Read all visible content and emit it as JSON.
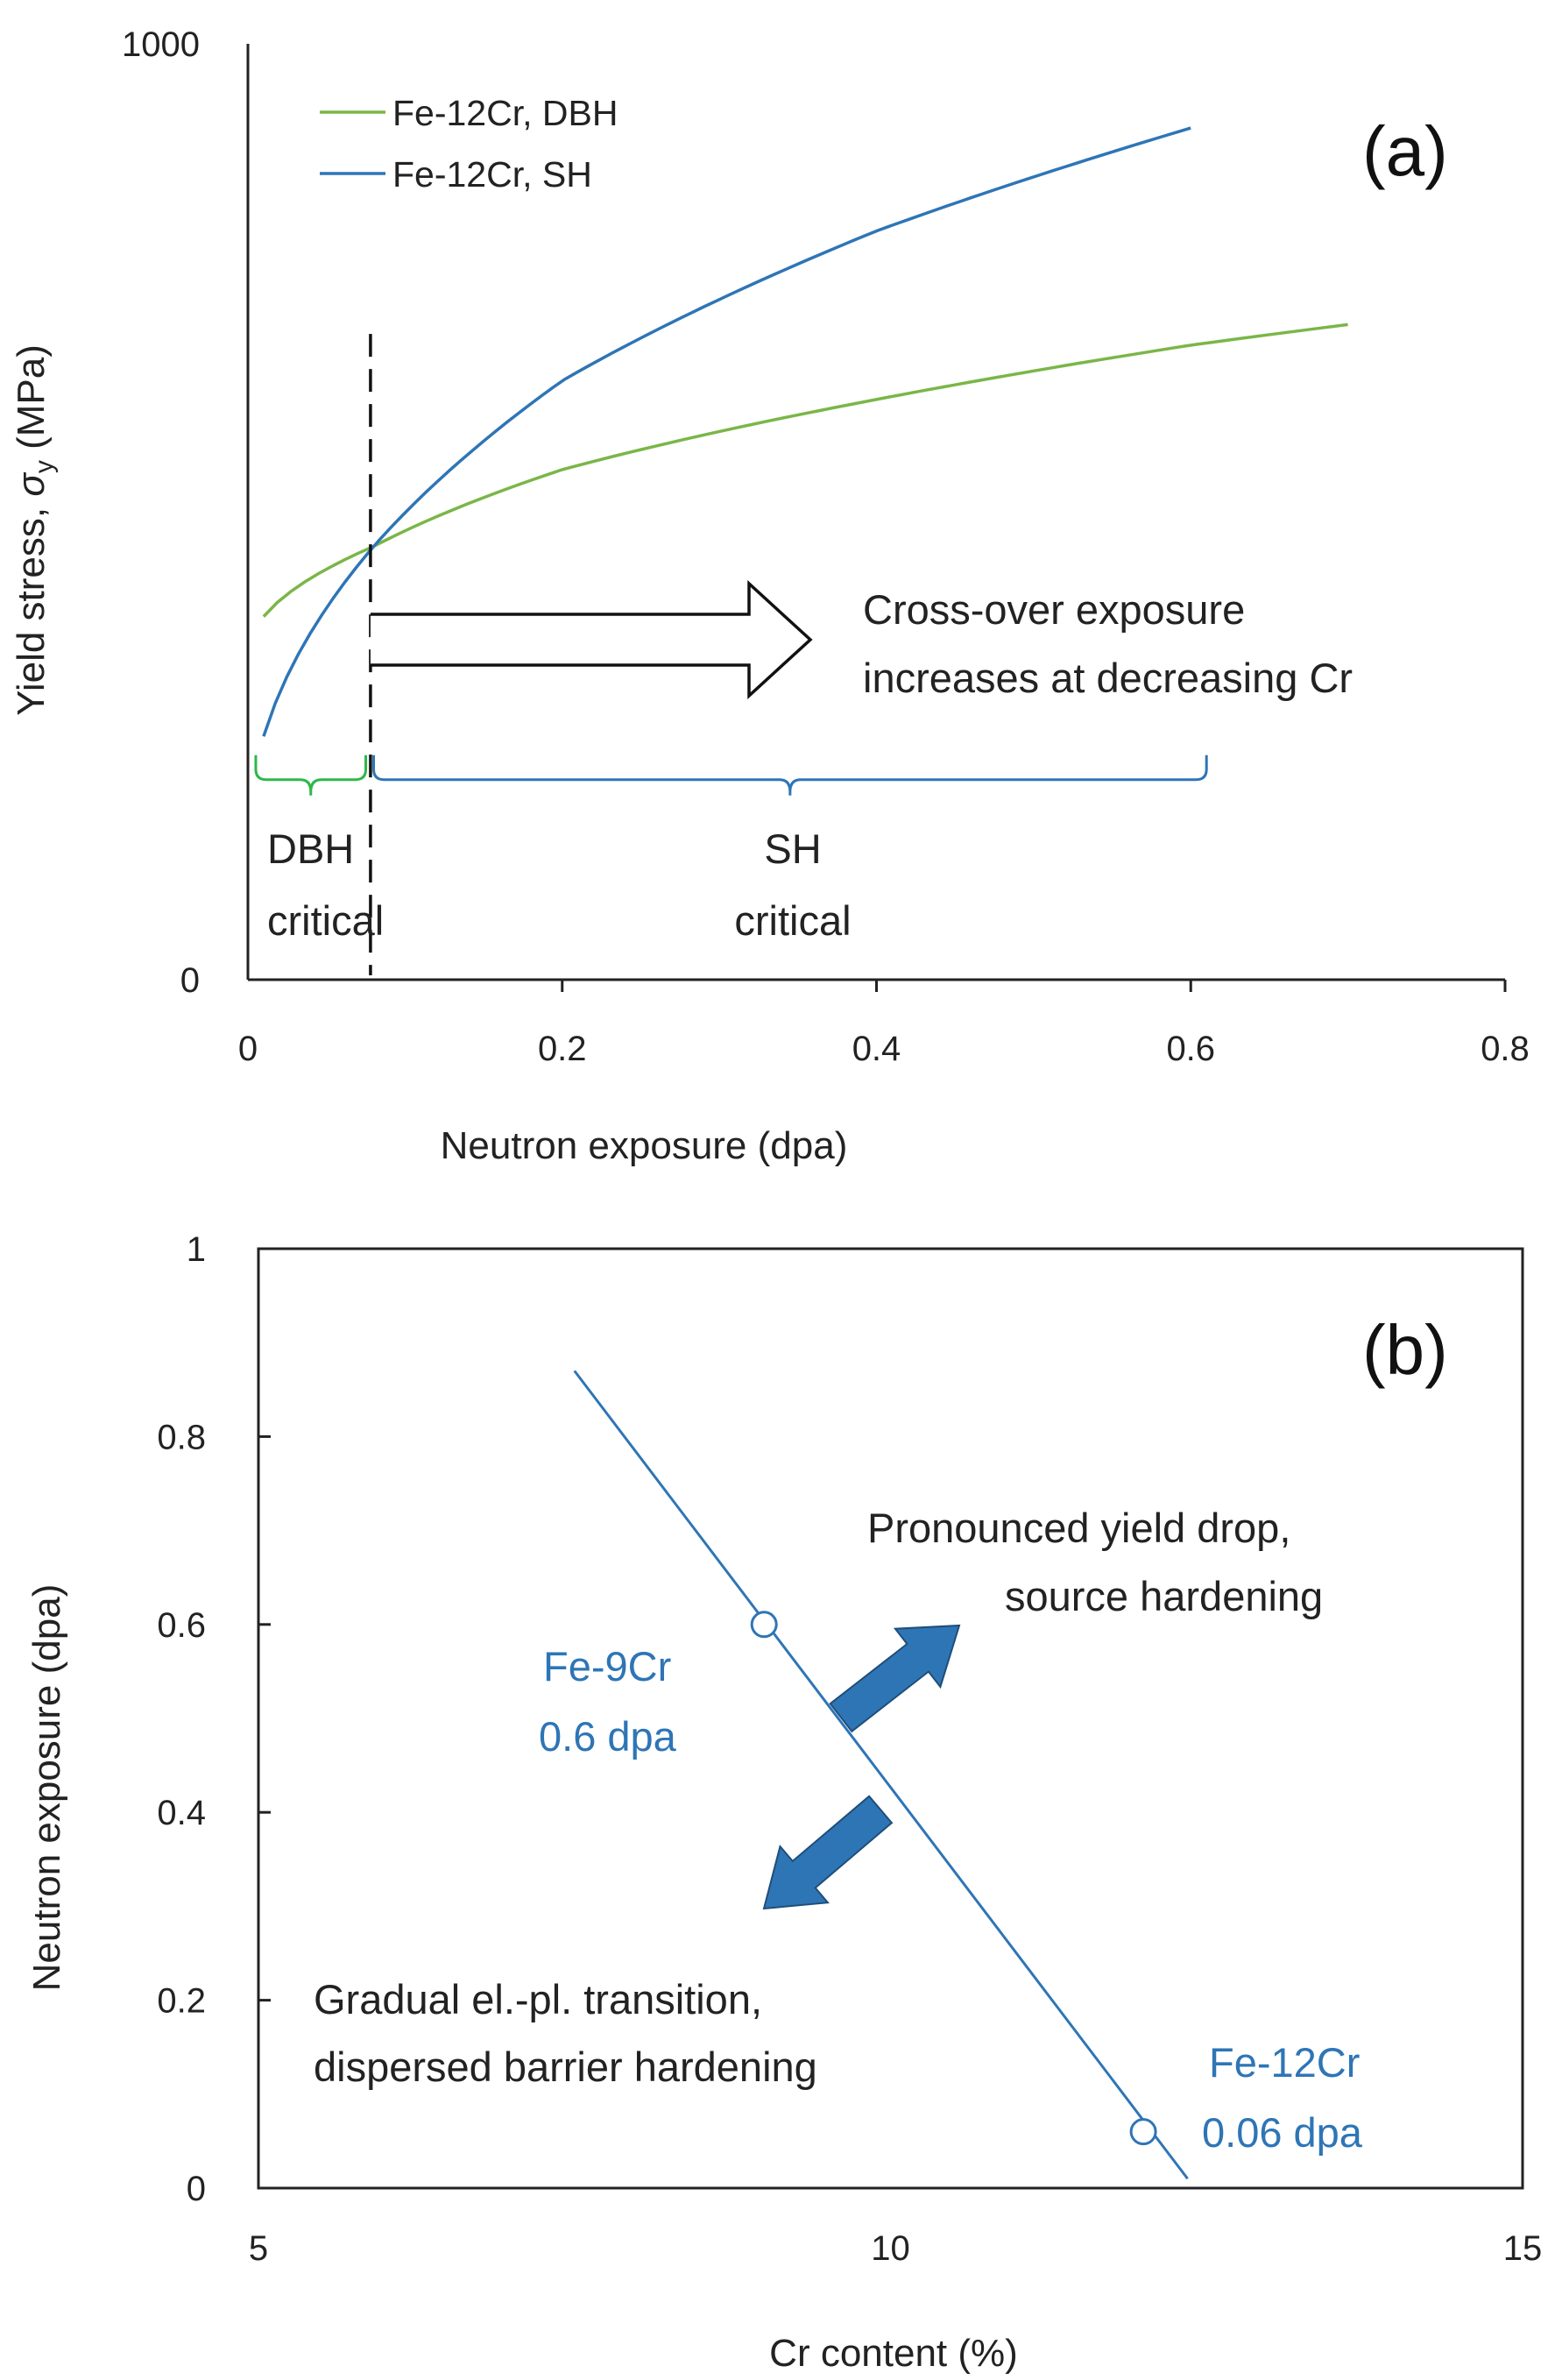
{
  "colors": {
    "green": "#7ab648",
    "blue": "#2e75b6",
    "bracket_green": "#2db84a",
    "arrow_blue": "#2e75b6",
    "axis": "#222222"
  },
  "chart_data": [
    {
      "type": "line",
      "panel_label": "(a)",
      "title": "",
      "xlabel": "Neutron exposure  (dpa)",
      "ylabel_prefix": "Yield  stress, ",
      "ylabel_symbol": "σ",
      "ylabel_sub": "y",
      "ylabel_unit": " (MPa)",
      "xlim": [
        0,
        0.8
      ],
      "ylim": [
        0,
        1000
      ],
      "x_ticks": [
        "0",
        "0.2",
        "0.4",
        "0.6",
        "0.8"
      ],
      "y_ticks": [
        "0",
        "1000"
      ],
      "series": [
        {
          "name": "Fe-12Cr, DBH",
          "color": "#7ab648",
          "x_start": 0.01,
          "x_end": 0.7,
          "x": [
            0.01,
            0.08,
            0.2,
            0.4,
            0.6,
            0.7
          ],
          "y": [
            388,
            463,
            545,
            620,
            678,
            700
          ]
        },
        {
          "name": "Fe-12Cr, SH",
          "color": "#2e75b6",
          "x_start": 0.01,
          "x_end": 0.6,
          "x": [
            0.01,
            0.08,
            0.2,
            0.4,
            0.6
          ],
          "y": [
            260,
            463,
            640,
            800,
            910
          ]
        }
      ],
      "crossover_x": 0.078,
      "crossover_y_top": 690,
      "arrow_label_1": "Cross-over exposure",
      "arrow_label_2": "increases at decreasing Cr",
      "bracket_dbh": {
        "x_start": 0.005,
        "x_end": 0.075,
        "y": 225,
        "label_1": "DBH",
        "label_2": "critical"
      },
      "bracket_sh": {
        "x_start": 0.08,
        "x_end": 0.61,
        "y": 225,
        "label_1": "SH",
        "label_2": "critical"
      }
    },
    {
      "type": "line",
      "panel_label": "(b)",
      "title": "",
      "xlabel": "Cr content (%)",
      "ylabel": "Neutron exposure (dpa)",
      "xlim": [
        5,
        15
      ],
      "ylim": [
        0,
        1
      ],
      "x_ticks": [
        "5",
        "10",
        "15"
      ],
      "y_ticks": [
        "0",
        "0.2",
        "0.4",
        "0.6",
        "0.8",
        "1"
      ],
      "series": [
        {
          "name": "cross-over line",
          "color": "#2e75b6",
          "x": [
            7.5,
            12.35
          ],
          "y": [
            0.87,
            0.01
          ]
        }
      ],
      "points": [
        {
          "x": 9.0,
          "y": 0.6,
          "label_1": "Fe-9Cr",
          "label_2": "0.6 dpa"
        },
        {
          "x": 12.0,
          "y": 0.06,
          "label_1": "Fe-12Cr",
          "label_2": "0.06 dpa"
        }
      ],
      "upper_label_1": "Pronounced yield drop,",
      "upper_label_2": "source hardening",
      "lower_label_1": "Gradual el.-pl. transition,",
      "lower_label_2": "dispersed barrier hardening"
    }
  ]
}
